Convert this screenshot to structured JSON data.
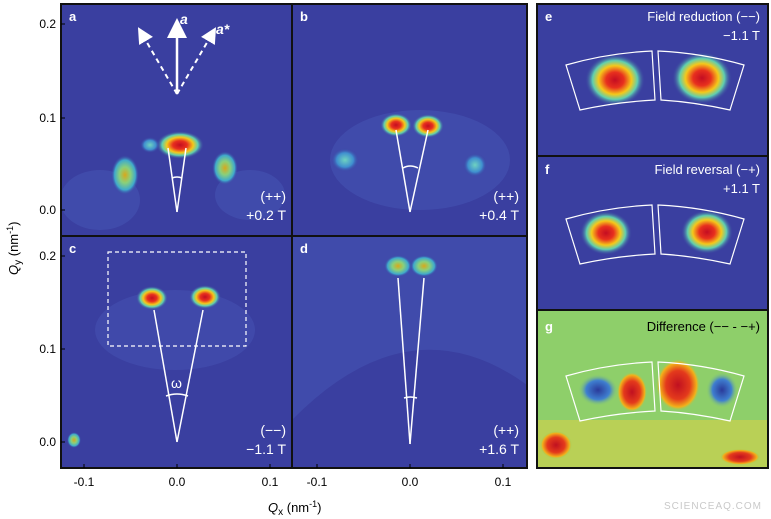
{
  "figure": {
    "y_axis_label": "Q",
    "y_axis_sub": "y",
    "y_axis_unit": " (nm",
    "y_axis_exp": "-1",
    "y_axis_close": ")",
    "x_axis_label": "Q",
    "x_axis_sub": "x",
    "x_axis_unit": " (nm",
    "x_axis_exp": "-1",
    "x_axis_close": ")",
    "y_ticks_top": [
      "0.2",
      "0.1",
      "0.0"
    ],
    "y_ticks_bottom": [
      "0.2",
      "0.1",
      "0.0"
    ],
    "x_ticks": [
      "-0.1",
      "0.0",
      "0.1",
      "-0.1",
      "0.0",
      "0.1"
    ],
    "colors": {
      "background_blue": "#3a3fa0",
      "peak_red": "#d8142a",
      "peak_yellow": "#f2e21a",
      "diff_green": "#8ecf6a"
    }
  },
  "panels": {
    "a": {
      "label": "a",
      "sign": "(++)",
      "field": "+0.2 T",
      "arrow_a": "a",
      "arrow_astar": "a*"
    },
    "b": {
      "label": "b",
      "sign": "(++)",
      "field": "+0.4 T"
    },
    "c": {
      "label": "c",
      "sign": "(−−)",
      "field": "−1.1 T",
      "angle": "ω"
    },
    "d": {
      "label": "d",
      "sign": "(++)",
      "field": "+1.6 T"
    },
    "e": {
      "label": "e",
      "title": "Field reduction (−−)",
      "field": "−1.1 T"
    },
    "f": {
      "label": "f",
      "title": "Field reversal (−+)",
      "field": "+1.1 T"
    },
    "g": {
      "label": "g",
      "title": "Difference (−− - −+)"
    }
  },
  "watermark": "SCIENCEAQ.COM"
}
